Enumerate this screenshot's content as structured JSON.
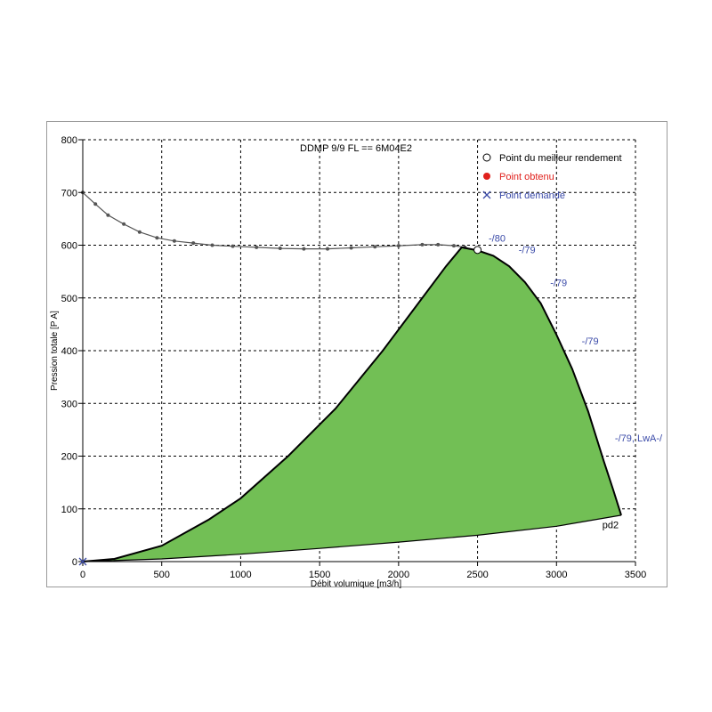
{
  "chart_data": {
    "type": "line",
    "title": "DDMP 9/9 FL == 6M04E2",
    "xlabel": "Débit volumique [m3/h]",
    "ylabel": "Pression totale [P A]",
    "xlim": [
      0,
      3500
    ],
    "ylim": [
      0,
      800
    ],
    "x_ticks": [
      "0",
      "500",
      "1000",
      "1500",
      "2000",
      "2500",
      "3000",
      "3500"
    ],
    "y_ticks": [
      "0",
      "100",
      "200",
      "300",
      "400",
      "500",
      "600",
      "700",
      "800"
    ],
    "grid": true,
    "legend_position": "top-right",
    "legend": [
      {
        "label": "Point du meilleur rendement",
        "marker": "open-circle",
        "color": "#000000"
      },
      {
        "label": "Point obtenu",
        "marker": "filled-circle",
        "color": "#e0201c"
      },
      {
        "label": "Point demandé",
        "marker": "cross",
        "color": "#3a4aa8"
      }
    ],
    "series": [
      {
        "kind": "pressure-curve",
        "color": "#555555",
        "x": [
          0,
          80,
          160,
          260,
          360,
          470,
          580,
          700,
          820,
          950,
          1100,
          1250,
          1400,
          1550,
          1700,
          1850,
          2000,
          2150,
          2250,
          2350,
          2420
        ],
        "y": [
          700,
          678,
          657,
          640,
          625,
          614,
          608,
          604,
          600,
          598,
          596,
          594,
          593,
          593,
          595,
          597,
          599,
          601,
          601,
          599,
          596
        ]
      },
      {
        "kind": "operating-area-upper",
        "color": "#000000",
        "x": [
          0,
          200,
          500,
          800,
          1000,
          1300,
          1600,
          1900,
          2100,
          2300,
          2400,
          2500,
          2600,
          2700,
          2800,
          2900,
          3000,
          3100,
          3200,
          3300,
          3360,
          3410
        ],
        "y": [
          0,
          5,
          30,
          80,
          120,
          200,
          290,
          400,
          480,
          560,
          596,
          590,
          580,
          560,
          530,
          490,
          430,
          365,
          285,
          190,
          135,
          88
        ]
      },
      {
        "kind": "operating-area-lower",
        "color": "#000000",
        "x": [
          0,
          500,
          1000,
          1500,
          2000,
          2500,
          3000,
          3410
        ],
        "y": [
          0,
          5,
          14,
          25,
          37,
          50,
          67,
          88
        ]
      }
    ],
    "fill_color": "#72bf55",
    "best_efficiency_point": {
      "x": 2500,
      "y": 591
    },
    "requested_point": {
      "x": 0,
      "y": 0
    },
    "annotations": [
      {
        "text": "-/80",
        "x": 2570,
        "y": 607,
        "color": "#3a4aa8"
      },
      {
        "text": "-/79",
        "x": 2760,
        "y": 585,
        "color": "#3a4aa8"
      },
      {
        "text": "-/79",
        "x": 2960,
        "y": 522,
        "color": "#3a4aa8"
      },
      {
        "text": "-/79",
        "x": 3160,
        "y": 412,
        "color": "#3a4aa8"
      },
      {
        "text": "-/79, LwA-/",
        "x": 3370,
        "y": 228,
        "color": "#3a4aa8"
      },
      {
        "text": "pd2",
        "x": 3290,
        "y": 63,
        "color": "#000000"
      }
    ]
  }
}
